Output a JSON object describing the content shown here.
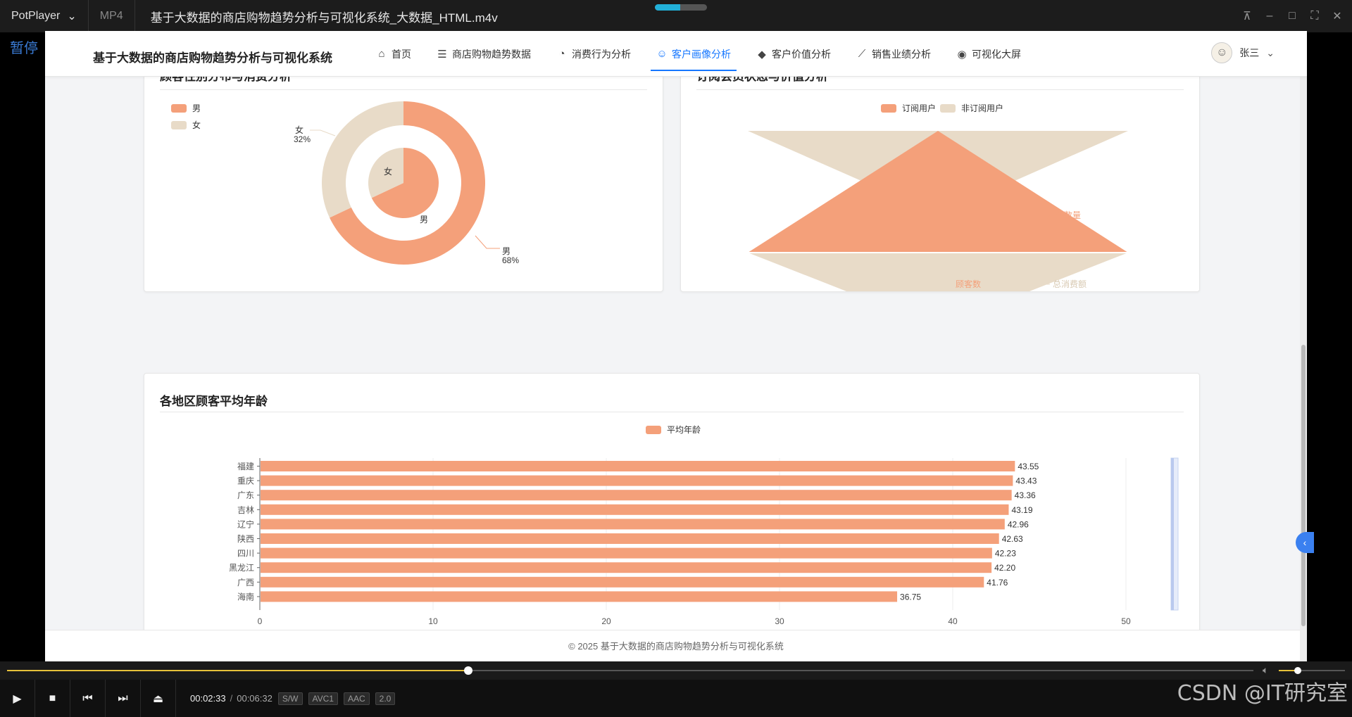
{
  "player": {
    "brand": "PotPlayer",
    "brand_chevron": "⌄",
    "format": "MP4",
    "file_title": "基于大数据的商店购物趋势分析与可视化系统_大数据_HTML.m4v",
    "pause_label": "暂停",
    "progress_fraction": 0.37,
    "time_current": "00:02:33",
    "time_sep": "/",
    "time_total": "00:06:32",
    "tags": [
      "S/W",
      "AVC1",
      "AAC",
      "2.0"
    ],
    "watermark": "CSDN @IT研究室"
  },
  "navbar": {
    "title": "基于大数据的商店购物趋势分析与可视化系统",
    "items": [
      {
        "label": "首页",
        "icon": "home-icon",
        "glyph": "⌂"
      },
      {
        "label": "商店购物趋势数据",
        "icon": "database-icon",
        "glyph": "☰"
      },
      {
        "label": "消费行为分析",
        "icon": "pie-chart-icon",
        "glyph": "◔"
      },
      {
        "label": "客户画像分析",
        "icon": "user-icon",
        "glyph": "☺"
      },
      {
        "label": "客户价值分析",
        "icon": "diamond-icon",
        "glyph": "◆"
      },
      {
        "label": "销售业绩分析",
        "icon": "line-chart-icon",
        "glyph": "⟋"
      },
      {
        "label": "可视化大屏",
        "icon": "dashboard-icon",
        "glyph": "◉"
      }
    ],
    "active_index": 3,
    "user_name": "张三"
  },
  "colors": {
    "primary": "#f4a07a",
    "secondary": "#e8dbc8",
    "accent": "#1677ff"
  },
  "cards": {
    "gender": {
      "title": "顾客性别分布与消费分析"
    },
    "subscription": {
      "title": "订阅会员状态与价值分析"
    },
    "region_age": {
      "title": "各地区顾客平均年龄"
    }
  },
  "footer": {
    "text": "© 2025 基于大数据的商店购物趋势分析与可视化系统"
  },
  "chart_data": [
    {
      "type": "pie",
      "legend": [
        "男",
        "女"
      ],
      "legend_position": "top-left",
      "outer_ring": [
        {
          "name": "男",
          "value": 68,
          "label": "男",
          "pct": "68%"
        },
        {
          "name": "女",
          "value": 32,
          "label": "女",
          "pct": "32%"
        }
      ],
      "inner_pie": [
        {
          "name": "男",
          "value": 68,
          "label": "男"
        },
        {
          "name": "女",
          "value": 32,
          "label": "女"
        }
      ]
    },
    {
      "type": "area",
      "legend": [
        "订阅用户",
        "非订阅用户"
      ],
      "legend_position": "top-center",
      "series": [
        {
          "name": "订阅用户",
          "labels": [
            "顾客数量",
            "顾客数"
          ]
        },
        {
          "name": "非订阅用户",
          "labels": [
            "总消费额"
          ]
        }
      ]
    },
    {
      "type": "bar",
      "orientation": "horizontal",
      "legend": [
        "平均年龄"
      ],
      "legend_position": "top-center",
      "categories": [
        "福建",
        "重庆",
        "广东",
        "吉林",
        "辽宁",
        "陕西",
        "四川",
        "黑龙江",
        "广西",
        "海南"
      ],
      "values": [
        43.55,
        43.43,
        43.36,
        43.19,
        42.96,
        42.63,
        42.23,
        42.2,
        41.76,
        36.75
      ],
      "value_labels": [
        "43.55",
        "43.43",
        "43.36",
        "43.19",
        "42.96",
        "42.63",
        "42.23",
        "42.20",
        "41.76",
        "36.75"
      ],
      "xlim": [
        0,
        50
      ],
      "xticks": [
        "0",
        "10",
        "20",
        "30",
        "40",
        "50"
      ]
    }
  ]
}
